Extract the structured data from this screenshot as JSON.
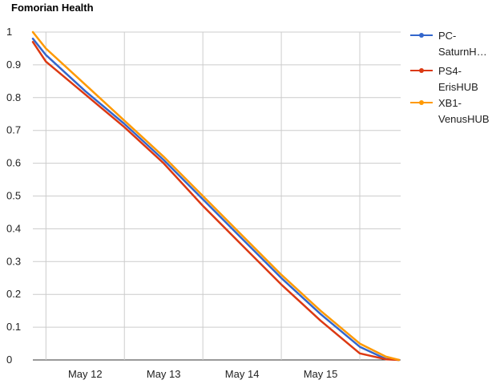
{
  "chart_data": {
    "type": "line",
    "title": "Fomorian Health",
    "xlabel": "",
    "ylabel": "",
    "ylim": [
      0,
      1
    ],
    "yticks": [
      "0",
      "0.1",
      "0.2",
      "0.3",
      "0.4",
      "0.5",
      "0.6",
      "0.7",
      "0.8",
      "0.9",
      "1"
    ],
    "xlim": [
      "2024-05-11 08:00",
      "2024-05-16 00:30"
    ],
    "xticks": [
      {
        "label": "May 12",
        "x": "2024-05-12"
      },
      {
        "label": "May 13",
        "x": "2024-05-13"
      },
      {
        "label": "May 14",
        "x": "2024-05-14"
      },
      {
        "label": "May 15",
        "x": "2024-05-15"
      }
    ],
    "grid": true,
    "legend": "right",
    "series": [
      {
        "name": "PC-SaturnH…",
        "legend_lines": [
          "PC-",
          "SaturnH…"
        ],
        "color": "#3366cc",
        "x": [
          "2024-05-11 08:00",
          "2024-05-11 12:00",
          "2024-05-12 00:00",
          "2024-05-12 12:00",
          "2024-05-13 00:00",
          "2024-05-13 12:00",
          "2024-05-14 00:00",
          "2024-05-14 12:00",
          "2024-05-15 00:00",
          "2024-05-15 12:00",
          "2024-05-15 20:00",
          "2024-05-16 00:00"
        ],
        "y": [
          0.98,
          0.93,
          0.82,
          0.72,
          0.61,
          0.49,
          0.37,
          0.25,
          0.14,
          0.04,
          0.003,
          0.0
        ]
      },
      {
        "name": "PS4-ErisHUB",
        "legend_lines": [
          "PS4-",
          "ErisHUB"
        ],
        "color": "#dc3912",
        "x": [
          "2024-05-11 08:00",
          "2024-05-11 12:00",
          "2024-05-12 00:00",
          "2024-05-12 12:00",
          "2024-05-13 00:00",
          "2024-05-13 12:00",
          "2024-05-14 00:00",
          "2024-05-14 12:00",
          "2024-05-15 00:00",
          "2024-05-15 12:00",
          "2024-05-15 20:00",
          "2024-05-16 00:00"
        ],
        "y": [
          0.97,
          0.91,
          0.81,
          0.71,
          0.6,
          0.47,
          0.35,
          0.23,
          0.12,
          0.02,
          0.002,
          0.0
        ]
      },
      {
        "name": "XB1-VenusHUB",
        "legend_lines": [
          "XB1-",
          "VenusHUB"
        ],
        "color": "#ff9900",
        "x": [
          "2024-05-11 08:00",
          "2024-05-11 12:00",
          "2024-05-12 00:00",
          "2024-05-12 12:00",
          "2024-05-13 00:00",
          "2024-05-13 12:00",
          "2024-05-14 00:00",
          "2024-05-14 12:00",
          "2024-05-15 00:00",
          "2024-05-15 12:00",
          "2024-05-15 20:00",
          "2024-05-16 00:00"
        ],
        "y": [
          1.0,
          0.95,
          0.84,
          0.73,
          0.62,
          0.5,
          0.38,
          0.26,
          0.15,
          0.05,
          0.01,
          0.0
        ]
      }
    ]
  }
}
